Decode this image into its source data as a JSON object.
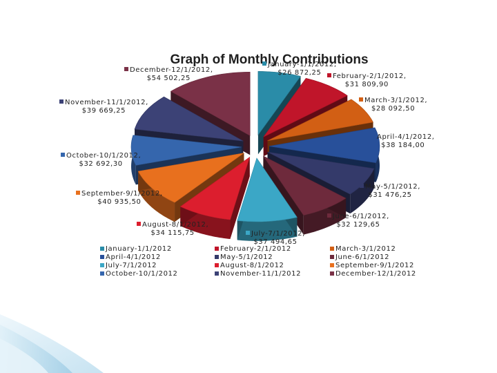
{
  "chart_data": {
    "type": "pie",
    "style": "3d-exploded",
    "title": "Graph of Monthly Contributions",
    "series": [
      {
        "category": "January-1/1/2012",
        "label": "January-1/1/2012,",
        "value": 26872.25,
        "value_label": "$26 872,25",
        "color": "#2a8ca8"
      },
      {
        "category": "February-2/1/2012",
        "label": "February-2/1/2012,",
        "value": 31809.9,
        "value_label": "$31 809,90",
        "color": "#c0152a"
      },
      {
        "category": "March-3/1/2012",
        "label": "March-3/1/2012,",
        "value": 28092.5,
        "value_label": "$28 092,50",
        "color": "#d25f14"
      },
      {
        "category": "April-4/1/2012",
        "label": "April-4/1/2012,",
        "value": 38184.0,
        "value_label": "$38 184,00",
        "color": "#28509a"
      },
      {
        "category": "May-5/1/2012",
        "label": "May-5/1/2012,",
        "value": 31476.25,
        "value_label": "$31 476,25",
        "color": "#343a6a"
      },
      {
        "category": "June-6/1/2012",
        "label": "June-6/1/2012,",
        "value": 32129.65,
        "value_label": "$32 129,65",
        "color": "#6e2a3c"
      },
      {
        "category": "July-7/1/2012",
        "label": "July-7/1/2012,",
        "value": 37494.65,
        "value_label": "$37 494,65",
        "color": "#3ba7c6"
      },
      {
        "category": "August-8/1/2012",
        "label": "August-8/1/2012,",
        "value": 34115.75,
        "value_label": "$34 115,75",
        "color": "#dc1e2e"
      },
      {
        "category": "September-9/1/2012",
        "label": "September-9/1/2012,",
        "value": 40935.5,
        "value_label": "$40 935,50",
        "color": "#e8701e"
      },
      {
        "category": "October-10/1/2012",
        "label": "October-10/1/2012,",
        "value": 32692.3,
        "value_label": "$32 692,30",
        "color": "#3566ad"
      },
      {
        "category": "November-11/1/2012",
        "label": "November-11/1/2012,",
        "value": 39669.25,
        "value_label": "$39 669,25",
        "color": "#3c4276"
      },
      {
        "category": "December-12/1/2012",
        "label": "December-12/1/2012,",
        "value": 54502.25,
        "value_label": "$54 502,25",
        "color": "#7a3147"
      }
    ],
    "legend": {
      "placement": "bottom",
      "columns": [
        [
          "January-1/1/2012",
          "April-4/1/2012",
          "July-7/1/2012",
          "October-10/1/2012"
        ],
        [
          "February-2/1/2012",
          "May-5/1/2012",
          "August-8/1/2012",
          "November-11/1/2012"
        ],
        [
          "March-3/1/2012",
          "June-6/1/2012",
          "September-9/1/2012",
          "December-12/1/2012"
        ]
      ]
    }
  }
}
